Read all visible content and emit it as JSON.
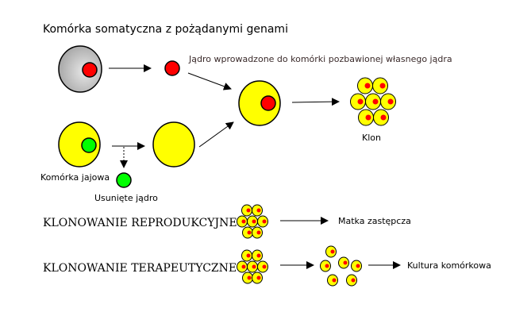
{
  "title": "Komórka somatyczna z pożądanymi genami",
  "labels": {
    "nucleus_transfer": "Jądro wprowadzone do komórki pozbawionej własnego jądra",
    "egg_cell": "Komórka jajowa",
    "removed_nucleus": "Usunięte jądro",
    "clone": "Klon",
    "reproductive": "KLONOWANIE REPRODUKCYJNE",
    "therapeutic": "KLONOWANIE TERAPEUTYCZNE",
    "surrogate": "Matka zastępcza",
    "culture": "Kultura komórkowa"
  },
  "colors": {
    "cytoplasm_egg": "#ffff00",
    "nucleus_donor": "#ff0000",
    "nucleus_egg": "#00ff00",
    "somatic_cell": "#bbbbbb"
  }
}
